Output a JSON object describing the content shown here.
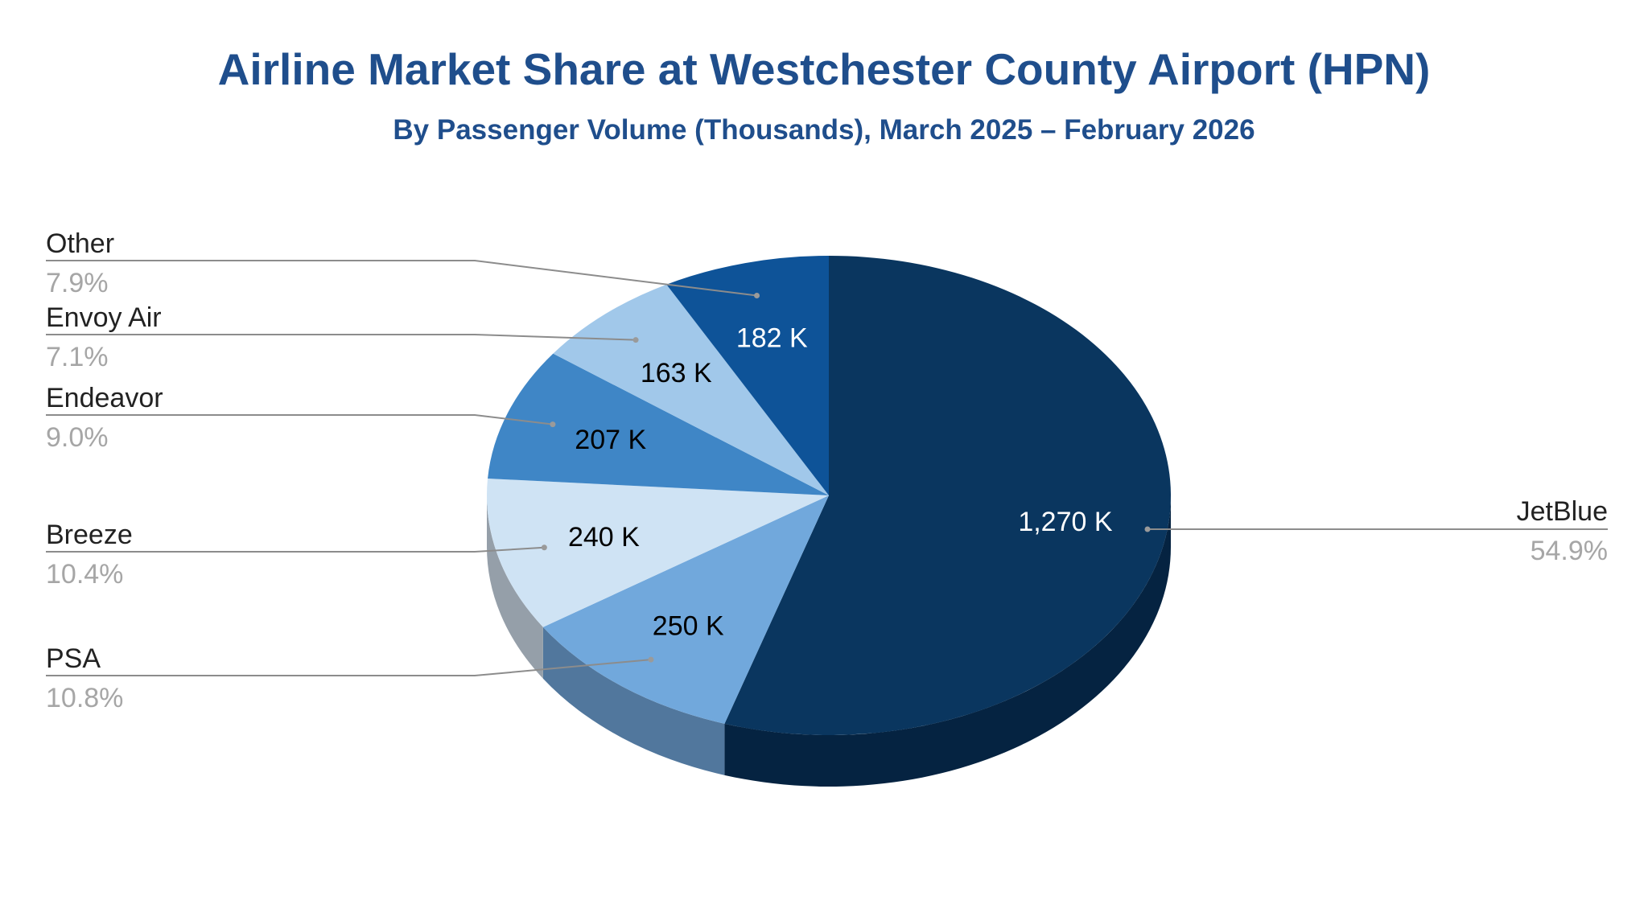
{
  "chart_data": {
    "type": "pie",
    "title": "Airline Market Share at Westchester County Airport (HPN)",
    "subtitle": "By Passenger Volume (Thousands), March 2025 – February 2026",
    "slices": [
      {
        "name": "JetBlue",
        "value": 1270,
        "value_label": "1,270 K",
        "percent_label": "54.9%",
        "color": "#0a365f",
        "side_color": "#052341",
        "label_color": "#ffffff"
      },
      {
        "name": "PSA",
        "value": 250,
        "value_label": "250 K",
        "percent_label": "10.8%",
        "color": "#71a8dc",
        "side_color": "#51779d",
        "label_color": "#000000"
      },
      {
        "name": "Breeze",
        "value": 240,
        "value_label": "240 K",
        "percent_label": "10.4%",
        "color": "#cfe3f4",
        "side_color": "#959fa9",
        "label_color": "#000000"
      },
      {
        "name": "Endeavor",
        "value": 207,
        "value_label": "207 K",
        "percent_label": "9.0%",
        "color": "#3f86c6",
        "side_color": "#2c5f8d",
        "label_color": "#000000"
      },
      {
        "name": "Envoy Air",
        "value": 163,
        "value_label": "163 K",
        "percent_label": "7.1%",
        "color": "#a1c8ea",
        "side_color": "#7090a8",
        "label_color": "#000000"
      },
      {
        "name": "Other",
        "value": 182,
        "value_label": "182 K",
        "percent_label": "7.9%",
        "color": "#0e5398",
        "side_color": "#0a3b6c",
        "label_color": "#ffffff"
      }
    ],
    "legend_placement": "outside-left-and-right"
  }
}
